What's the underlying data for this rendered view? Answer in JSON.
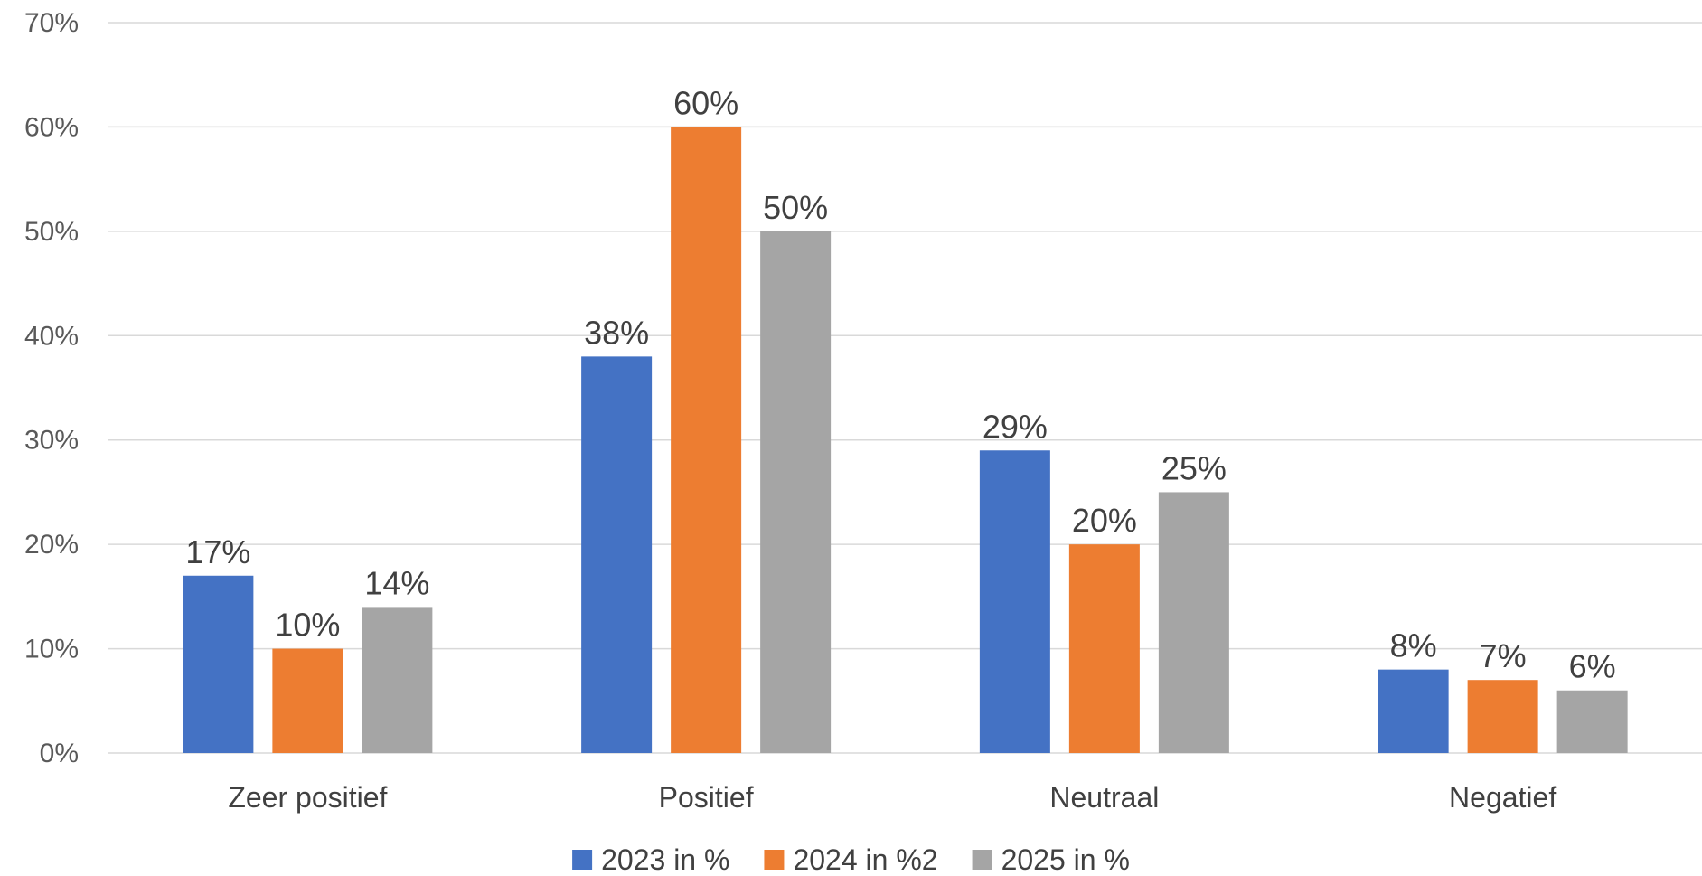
{
  "chart_data": {
    "type": "bar",
    "categories": [
      "Zeer positief",
      "Positief",
      "Neutraal",
      "Negatief"
    ],
    "series": [
      {
        "name": "2023 in %",
        "values": [
          17,
          38,
          29,
          8
        ],
        "labels": [
          "17%",
          "38%",
          "29%",
          "8%"
        ],
        "color": "#4472C4"
      },
      {
        "name": "2024 in %2",
        "values": [
          10,
          60,
          20,
          7
        ],
        "labels": [
          "10%",
          "60%",
          "20%",
          "7%"
        ],
        "color": "#ED7D31"
      },
      {
        "name": "2025 in %",
        "values": [
          14,
          50,
          25,
          6
        ],
        "labels": [
          "14%",
          "50%",
          "25%",
          "6%"
        ],
        "color": "#A5A5A5"
      }
    ],
    "yticks": [
      "0%",
      "10%",
      "20%",
      "30%",
      "40%",
      "50%",
      "60%",
      "70%"
    ],
    "ylim": [
      0,
      70
    ],
    "grid": true,
    "legend_position": "bottom",
    "title": "",
    "xlabel": "",
    "ylabel": ""
  }
}
